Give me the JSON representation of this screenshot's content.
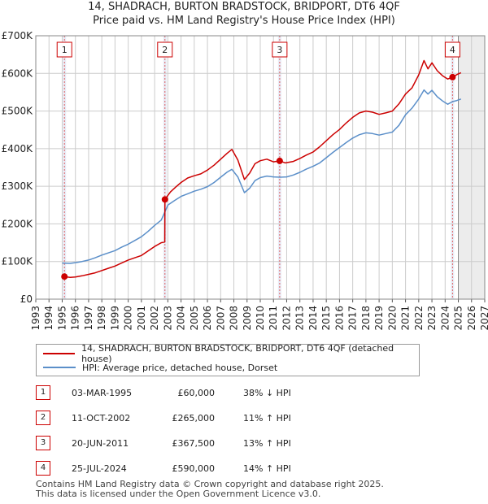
{
  "title_line1": "14, SHADRACH, BURTON BRADSTOCK, BRIDPORT, DT6 4QF",
  "title_line2": "Price paid vs. HM Land Registry's House Price Index (HPI)",
  "colors": {
    "property": "#cc0000",
    "hpi": "#5b8fc9",
    "vline": "#e06060",
    "future_band": "#dddddd",
    "grid": "#cccccc",
    "purchase_band": "#e8ecf6"
  },
  "chart_data": {
    "type": "line",
    "title": "14, SHADRACH, BURTON BRADSTOCK, BRIDPORT, DT6 4QF — Price paid vs. HM Land Registry's House Price Index (HPI)",
    "xlim": [
      1993,
      2027
    ],
    "ylim": [
      0,
      700000
    ],
    "y_ticks": [
      0,
      100000,
      200000,
      300000,
      400000,
      500000,
      600000,
      700000
    ],
    "y_tick_labels": [
      "£0",
      "£100K",
      "£200K",
      "£300K",
      "£400K",
      "£500K",
      "£600K",
      "£700K"
    ],
    "x_ticks": [
      1993,
      1994,
      1995,
      1996,
      1997,
      1998,
      1999,
      2000,
      2001,
      2002,
      2003,
      2004,
      2005,
      2006,
      2007,
      2008,
      2009,
      2010,
      2011,
      2012,
      2013,
      2014,
      2015,
      2016,
      2017,
      2018,
      2019,
      2020,
      2021,
      2022,
      2023,
      2024,
      2025,
      2026,
      2027
    ],
    "x_tick_labels": [
      "1993",
      "1994",
      "1995",
      "1996",
      "1997",
      "1998",
      "1999",
      "2000",
      "2001",
      "2002",
      "2003",
      "2004",
      "2005",
      "2006",
      "2007",
      "2008",
      "2009",
      "2010",
      "2011",
      "2012",
      "2013",
      "2014",
      "2015",
      "2016",
      "2017",
      "2018",
      "2019",
      "2020",
      "2021",
      "2022",
      "2023",
      "2024",
      "2025",
      "2026",
      "2027"
    ],
    "grid": true,
    "future_start": 2025.0,
    "series": [
      {
        "name": "14, SHADRACH, BURTON BRADSTOCK, BRIDPORT, DT6 4QF (detached house)",
        "color": "#cc0000",
        "x": [
          1995.17,
          1995.6,
          1996.0,
          1996.5,
          1997.0,
          1997.5,
          1998.0,
          1998.5,
          1999.0,
          1999.5,
          2000.0,
          2000.5,
          2001.0,
          2001.5,
          2002.0,
          2002.5,
          2002.77,
          2002.78,
          2003.2,
          2003.6,
          2004.0,
          2004.5,
          2005.0,
          2005.5,
          2006.0,
          2006.5,
          2007.0,
          2007.5,
          2007.85,
          2008.3,
          2008.8,
          2009.2,
          2009.6,
          2010.0,
          2010.5,
          2011.0,
          2011.47,
          2011.9,
          2012.5,
          2013.0,
          2013.5,
          2014.0,
          2014.5,
          2015.0,
          2015.5,
          2016.0,
          2016.5,
          2017.0,
          2017.5,
          2018.0,
          2018.5,
          2019.0,
          2019.5,
          2020.0,
          2020.5,
          2021.0,
          2021.5,
          2022.0,
          2022.4,
          2022.7,
          2023.0,
          2023.4,
          2023.8,
          2024.2,
          2024.56,
          2024.9,
          2025.2
        ],
        "y": [
          60000,
          58000,
          59000,
          62000,
          66000,
          70000,
          76000,
          82000,
          88000,
          96000,
          104000,
          110000,
          116000,
          128000,
          140000,
          150000,
          152000,
          265000,
          285000,
          298000,
          310000,
          322000,
          328000,
          333000,
          343000,
          356000,
          372000,
          388000,
          398000,
          370000,
          318000,
          335000,
          360000,
          368000,
          372000,
          365000,
          367500,
          362000,
          366000,
          374000,
          383000,
          391000,
          405000,
          421000,
          437000,
          451000,
          468000,
          483000,
          495000,
          500000,
          497000,
          491000,
          495000,
          500000,
          519000,
          545000,
          562000,
          596000,
          634000,
          612000,
          628000,
          607000,
          594000,
          585000,
          590000,
          597000,
          602000
        ]
      },
      {
        "name": "HPI: Average price, detached house, Dorset",
        "color": "#5b8fc9",
        "x": [
          1995.0,
          1995.6,
          1996.0,
          1996.5,
          1997.0,
          1997.5,
          1998.0,
          1998.5,
          1999.0,
          1999.5,
          2000.0,
          2000.5,
          2001.0,
          2001.5,
          2002.0,
          2002.5,
          2002.78,
          2003.0,
          2003.5,
          2004.0,
          2004.5,
          2005.0,
          2005.5,
          2006.0,
          2006.5,
          2007.0,
          2007.5,
          2007.85,
          2008.3,
          2008.8,
          2009.2,
          2009.6,
          2010.0,
          2010.5,
          2011.0,
          2011.5,
          2012.0,
          2012.5,
          2013.0,
          2013.5,
          2014.0,
          2014.5,
          2015.0,
          2015.5,
          2016.0,
          2016.5,
          2017.0,
          2017.5,
          2018.0,
          2018.5,
          2019.0,
          2019.5,
          2020.0,
          2020.5,
          2021.0,
          2021.5,
          2022.0,
          2022.4,
          2022.7,
          2023.0,
          2023.4,
          2023.8,
          2024.2,
          2024.56,
          2024.9,
          2025.2
        ],
        "y": [
          96000,
          95000,
          97000,
          100000,
          104000,
          110000,
          117000,
          123000,
          129000,
          138000,
          146000,
          156000,
          166000,
          180000,
          196000,
          210000,
          232000,
          250000,
          262000,
          273000,
          280000,
          287000,
          292000,
          299000,
          310000,
          324000,
          338000,
          345000,
          325000,
          283000,
          295000,
          315000,
          323000,
          327000,
          325000,
          324000,
          325000,
          330000,
          337000,
          346000,
          353000,
          362000,
          376000,
          390000,
          403000,
          416000,
          428000,
          437000,
          442000,
          440000,
          436000,
          440000,
          444000,
          462000,
          490000,
          508000,
          532000,
          556000,
          545000,
          555000,
          538000,
          527000,
          518000,
          525000,
          528000,
          532000
        ]
      }
    ],
    "purchases": [
      {
        "num": "1",
        "date": "03-MAR-1995",
        "x": 1995.17,
        "price_value": 60000,
        "price": "£60,000",
        "hpi": "38% ↓ HPI"
      },
      {
        "num": "2",
        "date": "11-OCT-2002",
        "x": 2002.78,
        "price_value": 265000,
        "price": "£265,000",
        "hpi": "11% ↑ HPI"
      },
      {
        "num": "3",
        "date": "20-JUN-2011",
        "x": 2011.47,
        "price_value": 367500,
        "price": "£367,500",
        "hpi": "13% ↑ HPI"
      },
      {
        "num": "4",
        "date": "25-JUL-2024",
        "x": 2024.56,
        "price_value": 590000,
        "price": "£590,000",
        "hpi": "14% ↑ HPI"
      }
    ]
  },
  "legend": {
    "property": "14, SHADRACH, BURTON BRADSTOCK, BRIDPORT, DT6 4QF (detached house)",
    "hpi": "HPI: Average price, detached house, Dorset"
  },
  "footer_line1": "Contains HM Land Registry data © Crown copyright and database right 2025.",
  "footer_line2": "This data is licensed under the Open Government Licence v3.0."
}
